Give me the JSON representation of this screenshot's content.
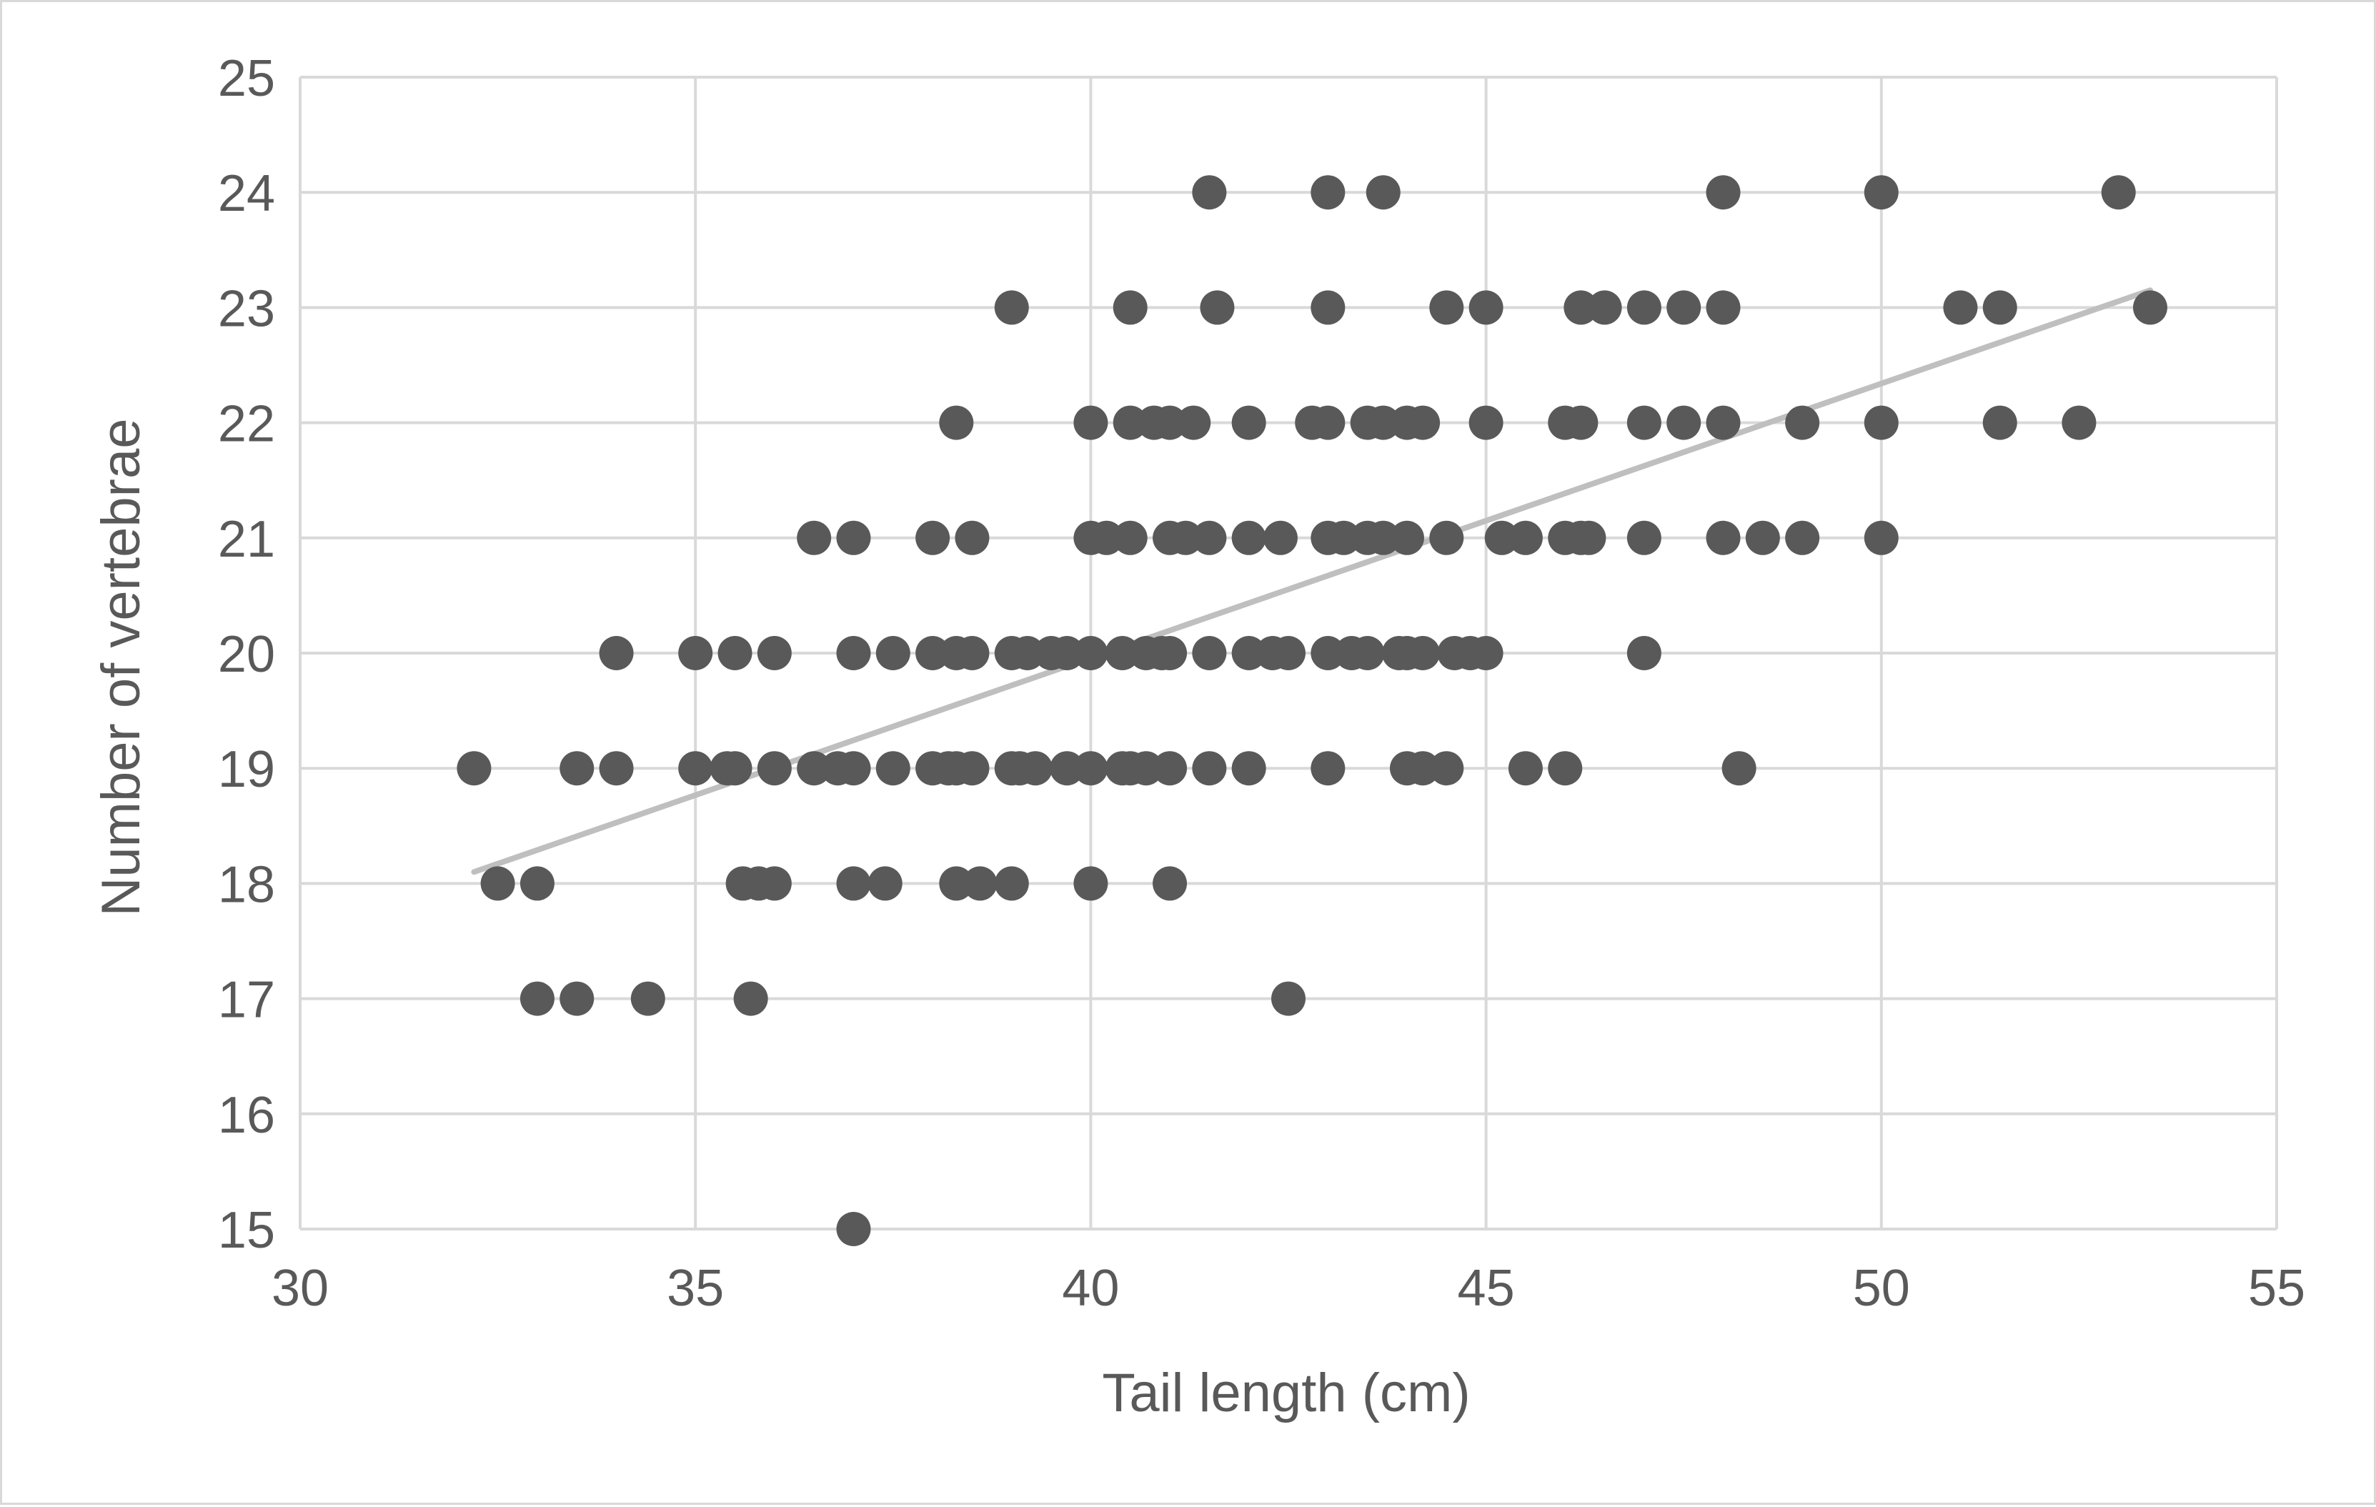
{
  "chart_data": {
    "type": "scatter",
    "title": "",
    "xlabel": "Tail length (cm)",
    "ylabel": "Number of vertebrae",
    "xlim": [
      30,
      55
    ],
    "ylim": [
      15,
      25
    ],
    "x_ticks": [
      "30",
      "35",
      "40",
      "45",
      "50",
      "55"
    ],
    "y_ticks": [
      "15",
      "16",
      "17",
      "18",
      "19",
      "20",
      "21",
      "22",
      "23",
      "24",
      "25"
    ],
    "grid": true,
    "legend": "none",
    "colors": {
      "points": "#595959",
      "trendline": "#bfbfbf",
      "grid": "#d9d9d9",
      "text": "#595959"
    },
    "trendline": {
      "type": "linear",
      "x": [
        32.2,
        53.4
      ],
      "y": [
        18.1,
        23.15
      ]
    },
    "series": [
      {
        "points": [
          [
            32.2,
            19
          ],
          [
            32.5,
            18
          ],
          [
            33,
            18
          ],
          [
            33,
            17
          ],
          [
            33.5,
            17
          ],
          [
            33.5,
            19
          ],
          [
            34,
            19
          ],
          [
            34,
            20
          ],
          [
            34.4,
            17
          ],
          [
            35,
            19
          ],
          [
            35,
            20
          ],
          [
            35.4,
            19
          ],
          [
            35.5,
            19
          ],
          [
            35.5,
            20
          ],
          [
            35.6,
            18
          ],
          [
            35.7,
            17
          ],
          [
            35.8,
            18
          ],
          [
            36,
            18
          ],
          [
            36,
            19
          ],
          [
            36,
            20
          ],
          [
            36.5,
            19
          ],
          [
            36.5,
            21
          ],
          [
            36.8,
            19
          ],
          [
            37,
            19
          ],
          [
            37,
            20
          ],
          [
            37,
            21
          ],
          [
            37,
            18
          ],
          [
            37,
            15
          ],
          [
            37.4,
            18
          ],
          [
            37.5,
            19
          ],
          [
            37.5,
            20
          ],
          [
            38,
            19
          ],
          [
            38,
            20
          ],
          [
            38,
            21
          ],
          [
            38.2,
            19
          ],
          [
            38.3,
            19
          ],
          [
            38.3,
            20
          ],
          [
            38.3,
            22
          ],
          [
            38.3,
            18
          ],
          [
            38.5,
            19
          ],
          [
            38.5,
            20
          ],
          [
            38.5,
            21
          ],
          [
            38.6,
            18
          ],
          [
            39,
            19
          ],
          [
            39,
            20
          ],
          [
            39,
            23
          ],
          [
            39,
            18
          ],
          [
            39.1,
            19
          ],
          [
            39.2,
            20
          ],
          [
            39.3,
            19
          ],
          [
            39.5,
            20
          ],
          [
            39.7,
            20
          ],
          [
            39.7,
            19
          ],
          [
            40,
            19
          ],
          [
            40,
            20
          ],
          [
            40,
            21
          ],
          [
            40,
            22
          ],
          [
            40,
            18
          ],
          [
            40.2,
            21
          ],
          [
            40.4,
            19
          ],
          [
            40.4,
            20
          ],
          [
            40.5,
            19
          ],
          [
            40.5,
            21
          ],
          [
            40.5,
            22
          ],
          [
            40.5,
            23
          ],
          [
            40.7,
            19
          ],
          [
            40.7,
            20
          ],
          [
            40.8,
            22
          ],
          [
            40.9,
            20
          ],
          [
            41,
            19
          ],
          [
            41,
            20
          ],
          [
            41,
            21
          ],
          [
            41,
            22
          ],
          [
            41,
            18
          ],
          [
            41.2,
            21
          ],
          [
            41.3,
            22
          ],
          [
            41.5,
            19
          ],
          [
            41.5,
            20
          ],
          [
            41.5,
            21
          ],
          [
            41.5,
            24
          ],
          [
            41.6,
            23
          ],
          [
            42,
            19
          ],
          [
            42,
            20
          ],
          [
            42,
            21
          ],
          [
            42,
            22
          ],
          [
            42.3,
            20
          ],
          [
            42.4,
            21
          ],
          [
            42.5,
            20
          ],
          [
            42.5,
            17
          ],
          [
            42.8,
            22
          ],
          [
            43,
            19
          ],
          [
            43,
            20
          ],
          [
            43,
            21
          ],
          [
            43,
            22
          ],
          [
            43,
            23
          ],
          [
            43,
            24
          ],
          [
            43.2,
            21
          ],
          [
            43.3,
            20
          ],
          [
            43.5,
            20
          ],
          [
            43.5,
            21
          ],
          [
            43.5,
            22
          ],
          [
            43.7,
            21
          ],
          [
            43.7,
            22
          ],
          [
            43.7,
            24
          ],
          [
            43.9,
            20
          ],
          [
            44,
            19
          ],
          [
            44,
            20
          ],
          [
            44,
            21
          ],
          [
            44,
            22
          ],
          [
            44.2,
            19
          ],
          [
            44.2,
            20
          ],
          [
            44.2,
            22
          ],
          [
            44.5,
            19
          ],
          [
            44.5,
            21
          ],
          [
            44.5,
            23
          ],
          [
            44.6,
            20
          ],
          [
            44.8,
            20
          ],
          [
            45,
            20
          ],
          [
            45,
            22
          ],
          [
            45,
            23
          ],
          [
            45.2,
            21
          ],
          [
            45.5,
            19
          ],
          [
            45.5,
            21
          ],
          [
            46,
            19
          ],
          [
            46,
            21
          ],
          [
            46,
            22
          ],
          [
            46.2,
            21
          ],
          [
            46.2,
            22
          ],
          [
            46.2,
            23
          ],
          [
            46.3,
            21
          ],
          [
            46.5,
            23
          ],
          [
            47,
            20
          ],
          [
            47,
            21
          ],
          [
            47,
            22
          ],
          [
            47,
            23
          ],
          [
            47.5,
            22
          ],
          [
            47.5,
            23
          ],
          [
            48,
            21
          ],
          [
            48,
            22
          ],
          [
            48,
            23
          ],
          [
            48,
            24
          ],
          [
            48.2,
            19
          ],
          [
            48.5,
            21
          ],
          [
            49,
            21
          ],
          [
            49,
            22
          ],
          [
            50,
            21
          ],
          [
            50,
            22
          ],
          [
            50,
            24
          ],
          [
            51,
            23
          ],
          [
            51.5,
            22
          ],
          [
            51.5,
            23
          ],
          [
            52.5,
            22
          ],
          [
            53,
            24
          ],
          [
            53.4,
            23
          ]
        ]
      }
    ]
  }
}
